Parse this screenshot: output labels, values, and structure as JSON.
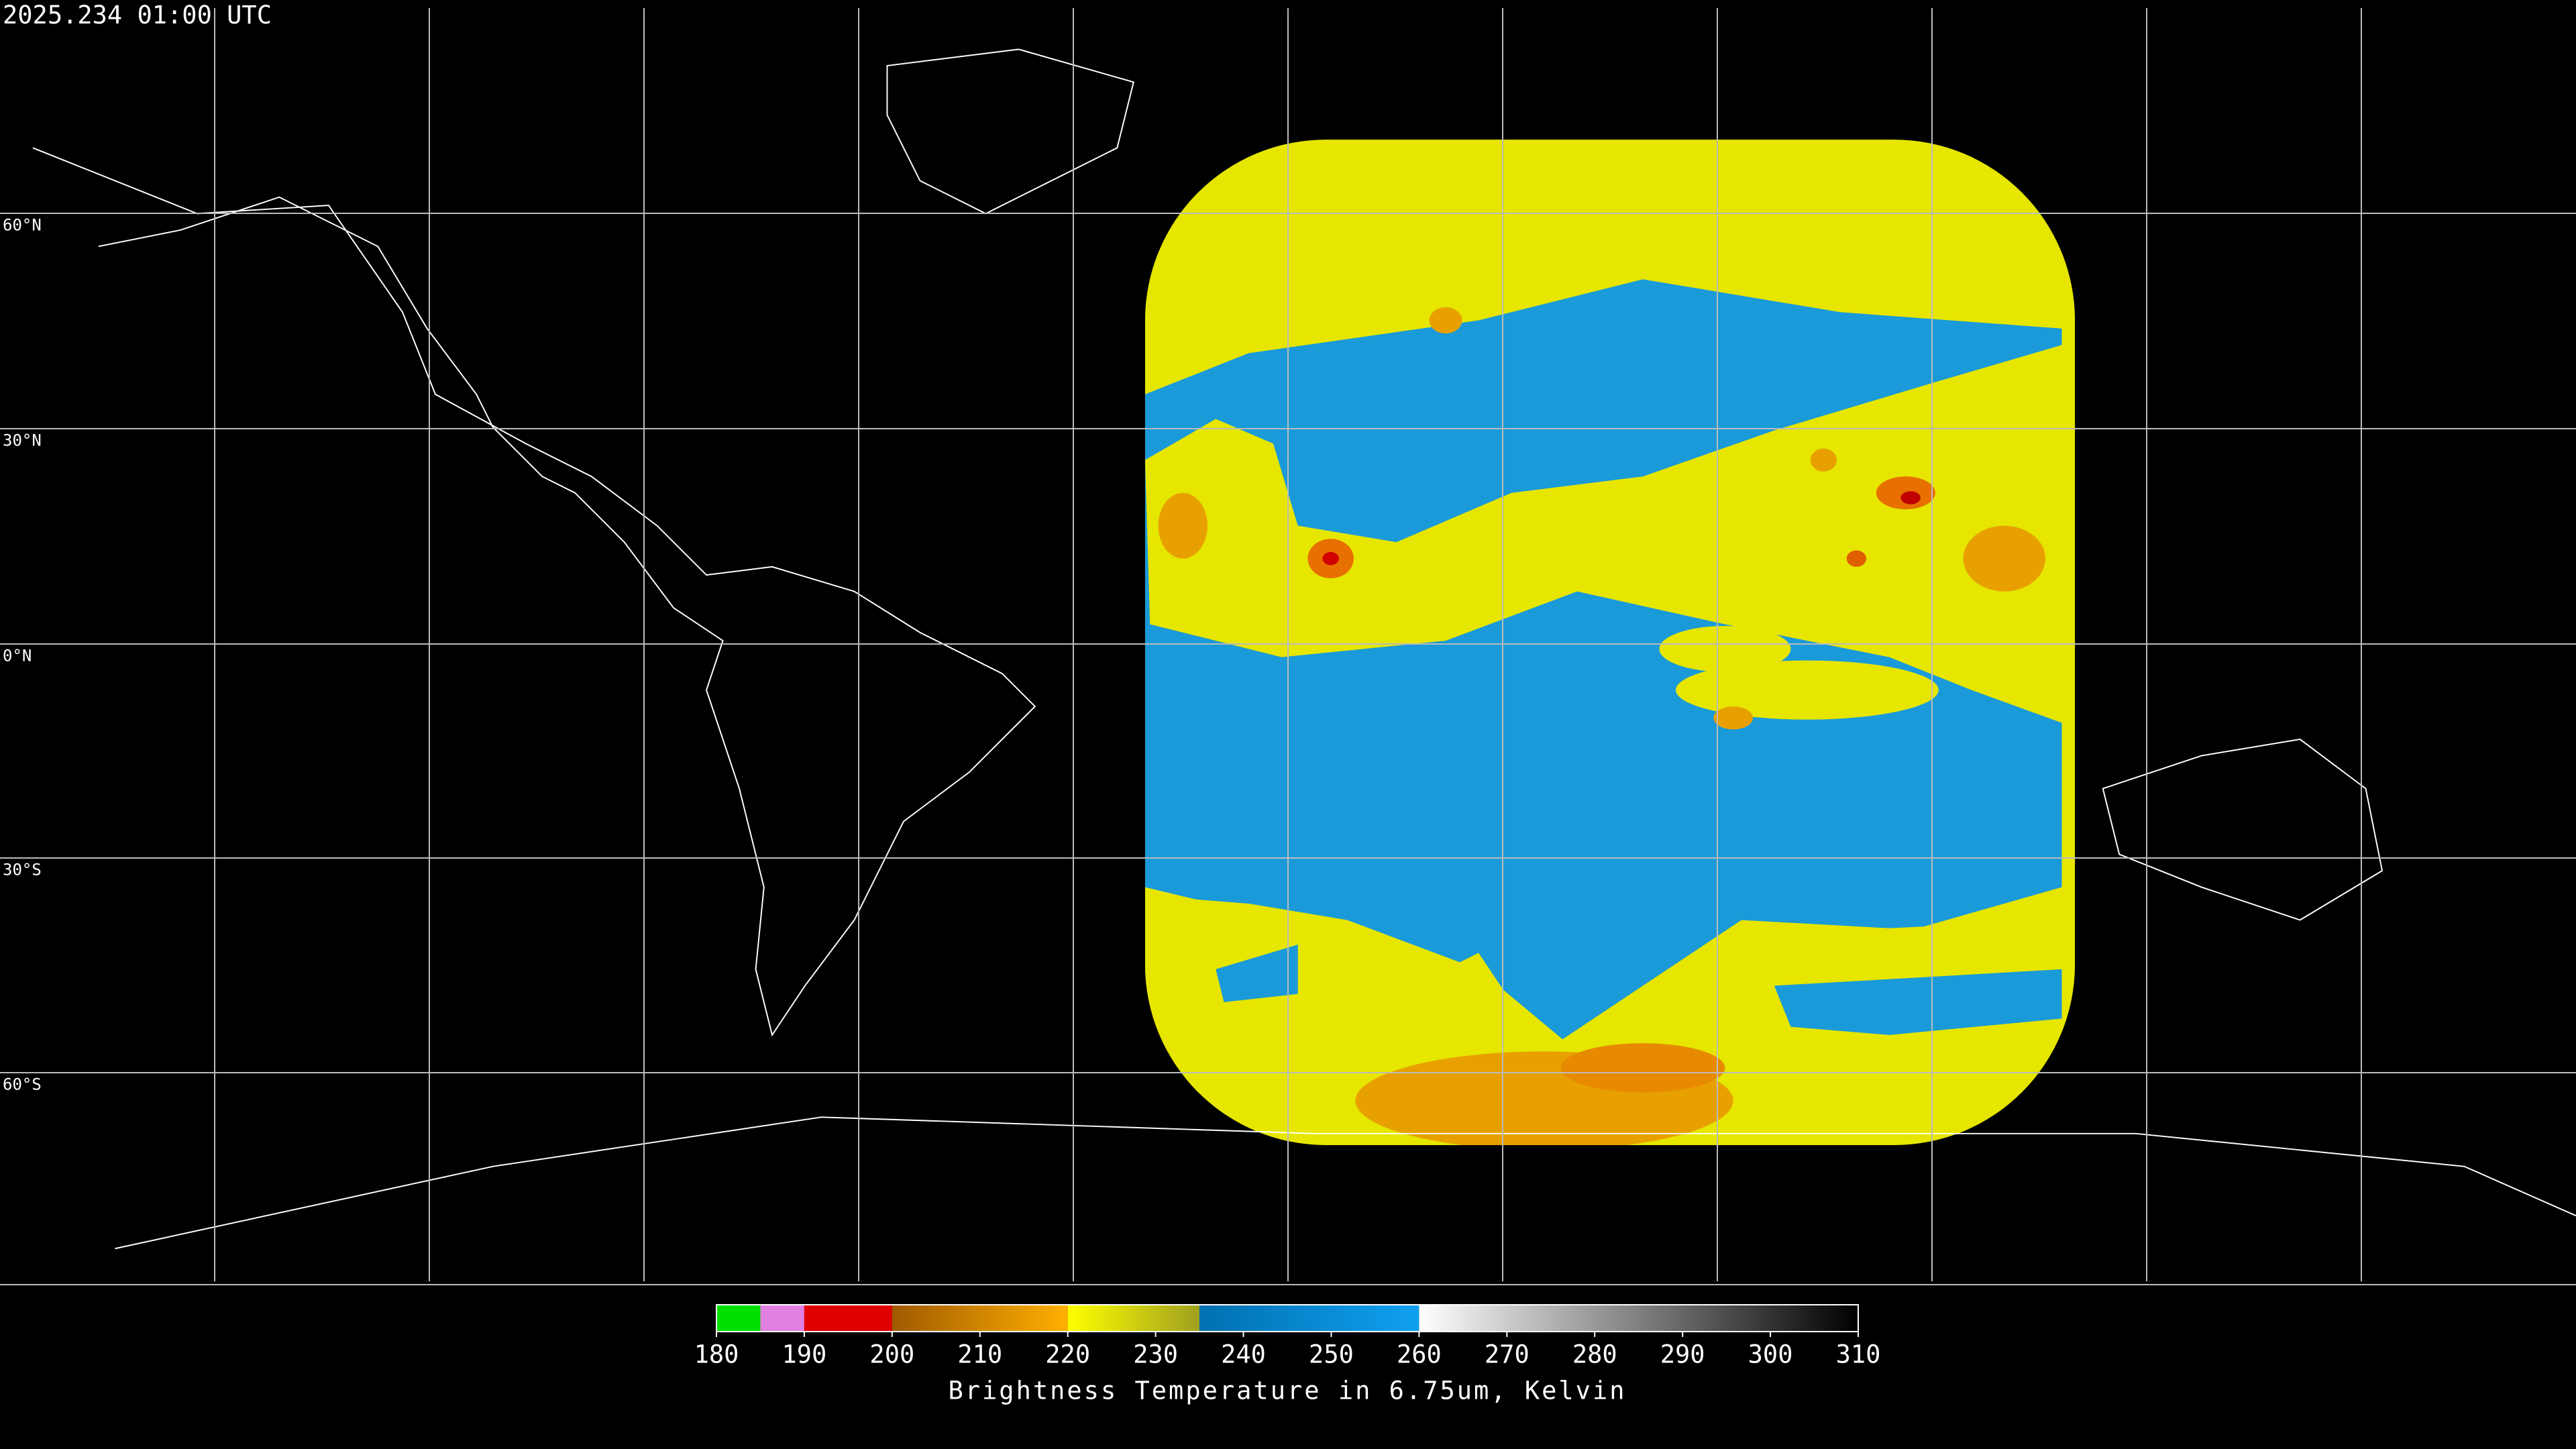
{
  "header": {
    "title": "2025.234 01:00 UTC"
  },
  "map": {
    "latitude_labels": [
      "60°N",
      "30°N",
      "0°N",
      "30°S",
      "60°S"
    ]
  },
  "colorbar": {
    "range": [
      180,
      310
    ],
    "ticks": [
      180,
      190,
      200,
      210,
      220,
      230,
      240,
      250,
      260,
      270,
      280,
      290,
      300,
      310
    ],
    "label": "Brightness Temperature in 6.75um, Kelvin",
    "segments": [
      {
        "from": 180,
        "to": 185,
        "color": "#00e000",
        "color_end": "#00e000"
      },
      {
        "from": 185,
        "to": 190,
        "color": "#e080e0",
        "color_end": "#e080e0"
      },
      {
        "from": 190,
        "to": 200,
        "color": "#e00000",
        "color_end": "#e00000"
      },
      {
        "from": 200,
        "to": 220,
        "color": "#a05a00",
        "color_end": "#ffb000"
      },
      {
        "from": 220,
        "to": 235,
        "color": "#ffff00",
        "color_end": "#a0a020"
      },
      {
        "from": 235,
        "to": 260,
        "color": "#0070b0",
        "color_end": "#10a0f0"
      },
      {
        "from": 260,
        "to": 310,
        "color": "#ffffff",
        "color_end": "#000000"
      }
    ]
  }
}
